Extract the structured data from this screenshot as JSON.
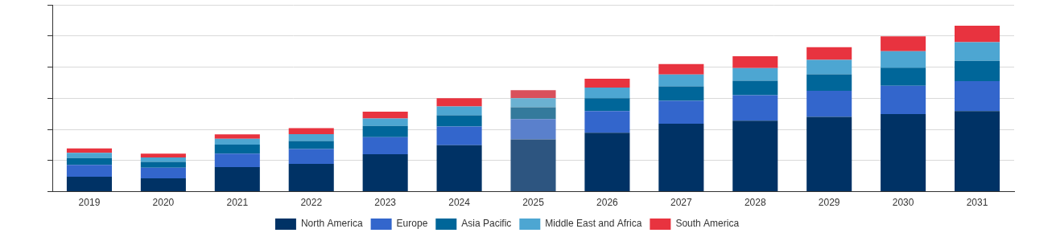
{
  "chart_data": {
    "type": "bar",
    "stacked": true,
    "grid": true,
    "legend": "bottom",
    "tick_labels": "x",
    "categories": [
      "2019",
      "2020",
      "2021",
      "2022",
      "2023",
      "2024",
      "2025",
      "2026",
      "2027",
      "2028",
      "2029",
      "2030",
      "2031"
    ],
    "ylim": [
      0,
      60
    ],
    "yticks": [
      0,
      10,
      20,
      30,
      40,
      50,
      60
    ],
    "series": [
      {
        "name": "North America",
        "color": "#003265",
        "colors": [
          "#003265",
          "#003265",
          "#003265",
          "#003265",
          "#003265",
          "#003265",
          "#2d5580",
          "#003265",
          "#003265",
          "#003265",
          "#003265",
          "#003265",
          "#003265"
        ],
        "values": [
          4.8,
          4.3,
          7.9,
          8.9,
          12.0,
          14.9,
          16.8,
          18.9,
          21.8,
          22.8,
          24.0,
          24.9,
          25.9
        ]
      },
      {
        "name": "Europe",
        "color": "#3366cc",
        "colors": [
          "#3366cc",
          "#3366cc",
          "#3366cc",
          "#3366cc",
          "#3366cc",
          "#3366cc",
          "#5a80cc",
          "#3366cc",
          "#3366cc",
          "#3366cc",
          "#3366cc",
          "#3366cc",
          "#3366cc"
        ],
        "values": [
          3.8,
          3.4,
          4.3,
          4.8,
          5.5,
          6.0,
          6.5,
          7.0,
          7.4,
          8.2,
          8.4,
          9.1,
          9.6
        ]
      },
      {
        "name": "Asia Pacific",
        "color": "#006699",
        "colors": [
          "#006699",
          "#006699",
          "#006699",
          "#006699",
          "#006699",
          "#006699",
          "#347a9c",
          "#006699",
          "#006699",
          "#006699",
          "#006699",
          "#006699",
          "#006699"
        ],
        "values": [
          2.2,
          1.9,
          2.9,
          2.6,
          3.6,
          3.6,
          3.8,
          4.1,
          4.6,
          4.6,
          5.3,
          5.8,
          6.5
        ]
      },
      {
        "name": "Middle East and Africa",
        "color": "#4da6d2",
        "colors": [
          "#4da6d2",
          "#4da6d2",
          "#4da6d2",
          "#4da6d2",
          "#4da6d2",
          "#4da6d2",
          "#6bb1d2",
          "#4da6d2",
          "#4da6d2",
          "#4da6d2",
          "#4da6d2",
          "#4da6d2",
          "#4da6d2"
        ],
        "values": [
          1.7,
          1.4,
          1.9,
          2.2,
          2.4,
          2.9,
          2.9,
          3.4,
          3.8,
          4.1,
          4.6,
          5.3,
          6.0
        ]
      },
      {
        "name": "South America",
        "color": "#e8333f",
        "colors": [
          "#e8333f",
          "#e8333f",
          "#e8333f",
          "#e8333f",
          "#e8333f",
          "#e8333f",
          "#d9505c",
          "#e8333f",
          "#e8333f",
          "#e8333f",
          "#e8333f",
          "#e8333f",
          "#e8333f"
        ],
        "values": [
          1.4,
          1.2,
          1.4,
          1.9,
          2.2,
          2.6,
          2.6,
          2.9,
          3.4,
          3.8,
          4.1,
          4.8,
          5.3
        ]
      }
    ]
  }
}
